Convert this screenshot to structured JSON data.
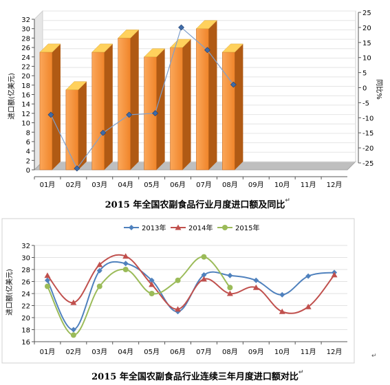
{
  "captions": {
    "chart1": "2015 年全国农副食品行业月度进口额及同比",
    "chart2": "2015 年全国农副食品行业连续三年月度进口额对比",
    "return_mark": "↵"
  },
  "chart_data": [
    {
      "type": "bar",
      "render": "3d-bar-with-line",
      "categories": [
        "01月",
        "02月",
        "03月",
        "04月",
        "05月",
        "06月",
        "07月",
        "08月",
        "09月",
        "10月",
        "11月",
        "12月"
      ],
      "values": [
        25,
        17,
        25,
        28,
        24,
        26,
        30,
        25,
        null,
        null,
        null,
        null
      ],
      "secondary_series": {
        "type": "line",
        "values": [
          -9,
          -27,
          -15,
          -9,
          -8.5,
          20,
          12.5,
          1,
          null,
          null,
          null,
          null
        ]
      },
      "ylabel": "进口额(亿美元)",
      "y2label": "同比%",
      "ylim": [
        0,
        32
      ],
      "yticks": [
        0,
        2,
        4,
        6,
        8,
        10,
        12,
        14,
        16,
        18,
        20,
        22,
        24,
        26,
        28,
        30,
        32
      ],
      "y2lim": [
        -25,
        25
      ],
      "y2ticks": [
        25,
        20,
        15,
        10,
        5,
        0,
        -5,
        -10,
        -15,
        -20,
        -25
      ],
      "colors": {
        "bar_front": "#F7923A",
        "bar_side": "#B05A14",
        "bar_top": "#FFD15C",
        "line": "#7F9FCB",
        "marker": "#3E6BA8"
      }
    },
    {
      "type": "line",
      "categories": [
        "01月",
        "02月",
        "03月",
        "04月",
        "05月",
        "06月",
        "07月",
        "08月",
        "09月",
        "10月",
        "11月",
        "12月"
      ],
      "series": [
        {
          "name": "2013年",
          "values": [
            26.2,
            18,
            27.8,
            29,
            26.2,
            21,
            27.1,
            27,
            26.2,
            23.8,
            26.9,
            27.5
          ],
          "color": "#4F81BD",
          "marker": "diamond"
        },
        {
          "name": "2014年",
          "values": [
            27,
            22.5,
            28.8,
            30.2,
            25.5,
            21.4,
            26.4,
            24,
            25,
            21,
            21.8,
            27.1
          ],
          "color": "#C0504D",
          "marker": "triangle"
        },
        {
          "name": "2015年",
          "values": [
            25.2,
            17.1,
            25.2,
            28,
            24,
            26.2,
            30.1,
            25,
            null,
            null,
            null,
            null
          ],
          "color": "#9BBB59",
          "marker": "circle"
        }
      ],
      "ylabel": "进口额(亿美元)",
      "ylim": [
        16,
        32
      ],
      "yticks": [
        16,
        18,
        20,
        22,
        24,
        26,
        28,
        30,
        32
      ],
      "legend": "top"
    }
  ]
}
